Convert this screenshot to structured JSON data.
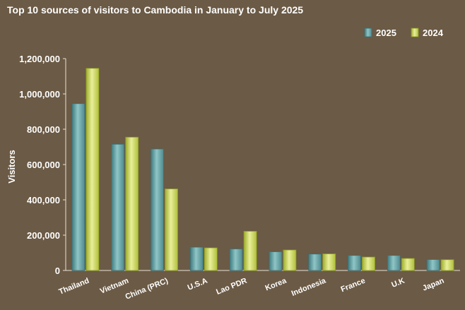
{
  "chart_data": {
    "type": "bar",
    "title": "Top 10 sources of visitors to Cambodia in January to July 2025",
    "xlabel": "",
    "ylabel": "Visitors",
    "categories": [
      "Thailand",
      "Vietnam",
      "China (PRC)",
      "U.S.A",
      "Lao PDR",
      "Korea",
      "Indonesia",
      "France",
      "U.K",
      "Japan"
    ],
    "series": [
      {
        "name": "2025",
        "color": "#5f9da1",
        "values": [
          945000,
          715000,
          688000,
          132000,
          122000,
          106000,
          93000,
          85000,
          85000,
          62000
        ]
      },
      {
        "name": "2024",
        "color": "#c9d65a",
        "values": [
          1145000,
          755000,
          462000,
          128000,
          222000,
          116000,
          94000,
          76000,
          68000,
          61000
        ]
      }
    ],
    "ylim": [
      0,
      1200000
    ],
    "yticks": [
      0,
      200000,
      400000,
      600000,
      800000,
      1000000,
      1200000
    ],
    "ytick_labels": [
      "0",
      "200,000",
      "400,000",
      "600,000",
      "800,000",
      "1,000,000",
      "1,200,000"
    ],
    "grid": false,
    "legend_position": "top-right"
  }
}
